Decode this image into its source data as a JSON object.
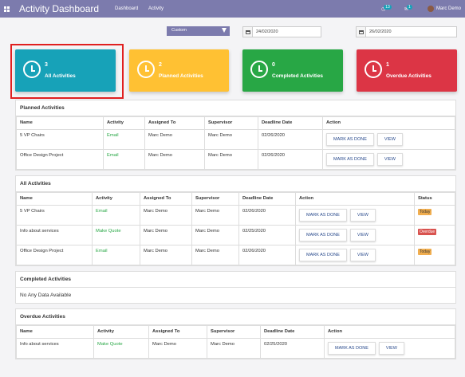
{
  "topbar": {
    "title": "Activity Dashboard",
    "nav": [
      "Dashboard",
      "Activity"
    ],
    "activity_badge": "13",
    "message_badge": "1",
    "user": "Marc Demo"
  },
  "filter": {
    "range": "Custom",
    "start_date": "24/02/2020",
    "end_date": "26/02/2020"
  },
  "cards": [
    {
      "count": "3",
      "label": "All Activities",
      "color": "#17a2b8"
    },
    {
      "count": "2",
      "label": "Planned Activities",
      "color": "#ffc133"
    },
    {
      "count": "0",
      "label": "Completed Activities",
      "color": "#28a745"
    },
    {
      "count": "1",
      "label": "Overdue Activities",
      "color": "#dc3545"
    }
  ],
  "actions": {
    "done": "MARK AS DONE",
    "view": "VIEW"
  },
  "planned": {
    "title": "Planned Activities",
    "headers": [
      "Name",
      "Activity",
      "Assigned To",
      "Supervisor",
      "Deadline Date",
      "Action"
    ],
    "rows": [
      {
        "name": "5 VP Chairs",
        "activity": "Email",
        "assigned": "Marc Demo",
        "supervisor": "Marc Demo",
        "deadline": "02/26/2020"
      },
      {
        "name": "Office Design Project",
        "activity": "Email",
        "assigned": "Marc Demo",
        "supervisor": "Marc Demo",
        "deadline": "02/26/2020"
      }
    ]
  },
  "all": {
    "title": "All Activities",
    "headers": [
      "Name",
      "Activity",
      "Assigned To",
      "Supervisor",
      "Deadline Date",
      "Action",
      "Status"
    ],
    "rows": [
      {
        "name": "5 VP Chairs",
        "activity": "Email",
        "assigned": "Marc Demo",
        "supervisor": "Marc Demo",
        "deadline": "02/26/2020",
        "status": "Today"
      },
      {
        "name": "Info about services",
        "activity": "Make Quote",
        "assigned": "Marc Demo",
        "supervisor": "Marc Demo",
        "deadline": "02/25/2020",
        "status": "Overdue"
      },
      {
        "name": "Office Design Project",
        "activity": "Email",
        "assigned": "Marc Demo",
        "supervisor": "Marc Demo",
        "deadline": "02/26/2020",
        "status": "Today"
      }
    ]
  },
  "completed": {
    "title": "Completed Activities",
    "empty": "No Any Data Available"
  },
  "overdue": {
    "title": "Overdue Activities",
    "headers": [
      "Name",
      "Activity",
      "Assigned To",
      "Supervisor",
      "Deadline Date",
      "Action"
    ],
    "rows": [
      {
        "name": "Info about services",
        "activity": "Make Quote",
        "assigned": "Marc Demo",
        "supervisor": "Marc Demo",
        "deadline": "02/25/2020"
      }
    ]
  }
}
